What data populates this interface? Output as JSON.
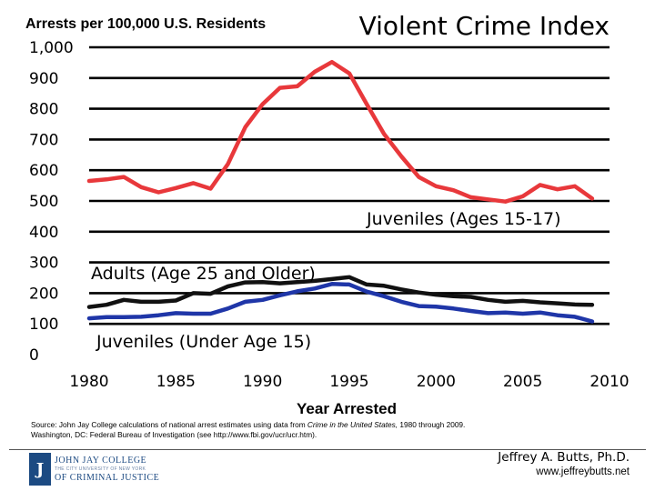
{
  "chart_data": {
    "type": "line",
    "title": "Violent Crime Index",
    "ylabel": "Arrests per 100,000 U.S. Residents",
    "xlabel": "Year Arrested",
    "ylim": [
      0,
      1000
    ],
    "xlim": [
      1980,
      2010
    ],
    "yticks": [
      0,
      100,
      200,
      300,
      400,
      500,
      600,
      700,
      800,
      900,
      1000
    ],
    "ytick_labels": [
      "0",
      "100",
      "200",
      "300",
      "400",
      "500",
      "600",
      "700",
      "800",
      "900",
      "1,000"
    ],
    "xticks": [
      1980,
      1985,
      1990,
      1995,
      2000,
      2005,
      2010
    ],
    "xtick_labels": [
      "1980",
      "1985",
      "1990",
      "1995",
      "2000",
      "2005",
      "2010"
    ],
    "grid": "horizontal",
    "x": [
      1980,
      1981,
      1982,
      1983,
      1984,
      1985,
      1986,
      1987,
      1988,
      1989,
      1990,
      1991,
      1992,
      1993,
      1994,
      1995,
      1996,
      1997,
      1998,
      1999,
      2000,
      2001,
      2002,
      2003,
      2004,
      2005,
      2006,
      2007,
      2008,
      2009
    ],
    "series": [
      {
        "name": "Juveniles (Ages 15-17)",
        "color": "#e8383b",
        "values": [
          565,
          570,
          578,
          545,
          528,
          542,
          558,
          540,
          620,
          740,
          815,
          868,
          873,
          920,
          952,
          915,
          815,
          718,
          645,
          578,
          548,
          535,
          512,
          505,
          498,
          515,
          552,
          538,
          548,
          508
        ]
      },
      {
        "name": "Adults (Age 25 and Older)",
        "color": "#111111",
        "values": [
          155,
          162,
          178,
          172,
          172,
          176,
          200,
          198,
          222,
          235,
          236,
          232,
          236,
          240,
          246,
          252,
          228,
          224,
          212,
          202,
          195,
          190,
          188,
          178,
          172,
          175,
          170,
          167,
          163,
          162
        ]
      },
      {
        "name": "Juveniles (Under Age 15)",
        "color": "#1f36a8",
        "values": [
          118,
          122,
          122,
          123,
          128,
          135,
          133,
          133,
          150,
          172,
          178,
          193,
          206,
          215,
          230,
          228,
          205,
          190,
          172,
          158,
          156,
          150,
          142,
          135,
          137,
          133,
          137,
          128,
          123,
          108
        ]
      }
    ]
  },
  "source": {
    "prefix": "Source: John Jay College calculations of national arrest estimates using data from ",
    "publication": "Crime in the United States,",
    "suffix": " 1980 through 2009.",
    "line2": "Washington, DC: Federal Bureau of Investigation (see http://www.fbi.gov/ucr/ucr.htm)."
  },
  "logo": {
    "seal_letter": "J",
    "line1": "JOHN JAY COLLEGE",
    "line2": "THE CITY UNIVERSITY OF NEW YORK",
    "line3": "OF CRIMINAL JUSTICE",
    "color": "#1c4a82"
  },
  "author": "Jeffrey A. Butts, Ph.D.",
  "website": "www.jeffreybutts.net"
}
